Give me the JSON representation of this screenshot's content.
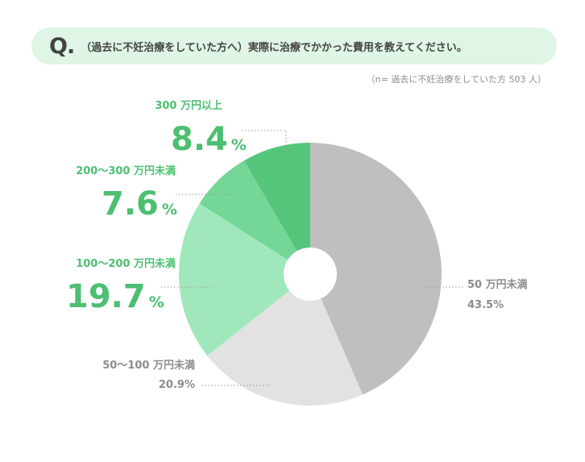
{
  "question": {
    "mark": "Q.",
    "text": "（過去に不妊治療をしていた方へ）実際に治療でかかった費用を教えてください。"
  },
  "sample_note": "（n= 過去に不妊治療をしていた方 503 人）",
  "chart_data": {
    "type": "pie",
    "title": "",
    "categories": [
      "50 万円未満",
      "50〜100 万円未満",
      "100〜200 万円未満",
      "200〜300 万円未満",
      "300 万円以上"
    ],
    "values": [
      43.5,
      20.9,
      19.7,
      7.6,
      8.4
    ],
    "value_labels": [
      "43.5%",
      "20.9%",
      "19.7",
      "7.6",
      "8.4"
    ],
    "percent_sign": "%",
    "colors": [
      "#bfbfbf",
      "#e2e2e2",
      "#a0e8bc",
      "#74d697",
      "#55c57b"
    ],
    "label_colors": [
      "#8c8c8c",
      "#8c8c8c",
      "#4cbf71",
      "#4cbf71",
      "#4cbf71"
    ],
    "center_hole": true,
    "start_angle_deg": 0,
    "direction": "clockwise"
  }
}
